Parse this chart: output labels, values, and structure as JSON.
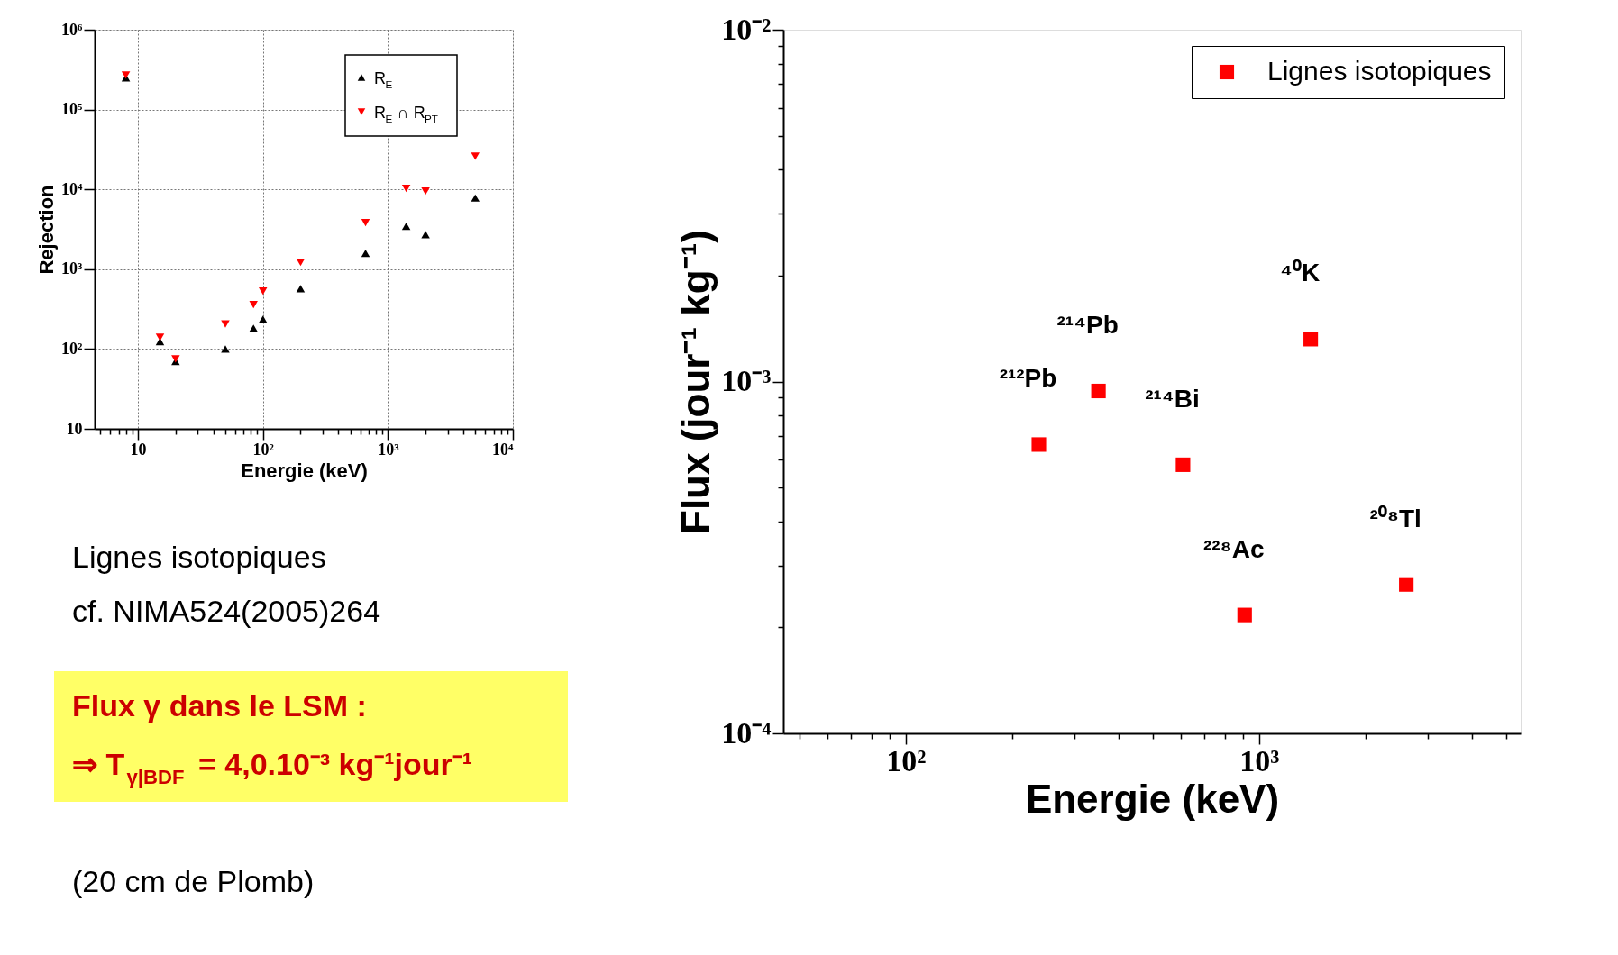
{
  "chart_data": [
    {
      "type": "scatter",
      "xlabel": "Energie (keV)",
      "ylabel": "Rejection",
      "log": "xy",
      "grid": true,
      "legend": "top right",
      "xlim": [
        4.5,
        10000
      ],
      "ylim": [
        10,
        1000000
      ],
      "xticks": [
        {
          "value": 5,
          "label": null
        },
        {
          "value": 6,
          "label": null
        },
        {
          "value": 7,
          "label": null
        },
        {
          "value": 8,
          "label": null
        },
        {
          "value": 9,
          "label": null
        },
        {
          "value": 10,
          "label": "10"
        },
        {
          "value": 20,
          "label": null
        },
        {
          "value": 30,
          "label": null
        },
        {
          "value": 40,
          "label": null
        },
        {
          "value": 50,
          "label": null
        },
        {
          "value": 60,
          "label": null
        },
        {
          "value": 70,
          "label": null
        },
        {
          "value": 80,
          "label": null
        },
        {
          "value": 90,
          "label": null
        },
        {
          "value": 100,
          "label": "10²"
        },
        {
          "value": 200,
          "label": null
        },
        {
          "value": 300,
          "label": null
        },
        {
          "value": 400,
          "label": null
        },
        {
          "value": 500,
          "label": null
        },
        {
          "value": 600,
          "label": null
        },
        {
          "value": 700,
          "label": null
        },
        {
          "value": 800,
          "label": null
        },
        {
          "value": 900,
          "label": null
        },
        {
          "value": 1000,
          "label": "10³"
        },
        {
          "value": 2000,
          "label": null
        },
        {
          "value": 3000,
          "label": null
        },
        {
          "value": 4000,
          "label": null
        },
        {
          "value": 5000,
          "label": null
        },
        {
          "value": 6000,
          "label": null
        },
        {
          "value": 7000,
          "label": null
        },
        {
          "value": 8000,
          "label": null
        },
        {
          "value": 9000,
          "label": null
        },
        {
          "value": 10000,
          "label": "10⁴"
        }
      ],
      "yticks": [
        10,
        {
          "value": 100,
          "label": "10²"
        },
        {
          "value": 1000,
          "label": "10³"
        },
        {
          "value": 10000,
          "label": "10⁴"
        },
        {
          "value": 100000,
          "label": "10⁵"
        },
        {
          "value": 1000000,
          "label": "10⁶"
        }
      ],
      "series": [
        {
          "name": "R$_{E}$",
          "color": "#000000",
          "marker": "triangle",
          "x": [
            8,
            15,
            20,
            50,
            84,
            100,
            200,
            662,
            1400,
            2000,
            5000
          ],
          "values": [
            250000,
            124,
            70,
            100,
            182,
            236,
            570,
            1580,
            3450,
            2720,
            7800
          ]
        },
        {
          "name": "R$_{E}$ ∩ R$_{PT}$",
          "color": "#ff0000",
          "marker": "triangle-down",
          "x": [
            8,
            15,
            20,
            50,
            84,
            100,
            200,
            662,
            1400,
            2000,
            5000
          ],
          "values": [
            270000,
            140,
            75,
            206,
            360,
            530,
            1220,
            3840,
            10300,
            9500,
            26000
          ]
        }
      ],
      "annotations": [
        "Lignes isotopiques",
        "cf. NIMA524(2005)264",
        "Flux γ dans le LSM :",
        "⇒ T$_{γ|BDF}$ = 4,0.10⁻³ kg⁻¹jour⁻¹",
        "(20 cm de Plomb)"
      ]
    },
    {
      "type": "scatter",
      "xlabel": "Energie (keV)",
      "ylabel": "Flux (jour⁻¹ kg⁻¹)",
      "log": "xy",
      "grid": false,
      "legend": "top right",
      "marker": "square",
      "xlim": [
        45,
        5500
      ],
      "ylim": [
        0.0001,
        0.01
      ],
      "xticks": [
        {
          "value": 50,
          "label": null
        },
        {
          "value": 60,
          "label": null
        },
        {
          "value": 70,
          "label": null
        },
        {
          "value": 80,
          "label": null
        },
        {
          "value": 90,
          "label": null
        },
        {
          "value": 100,
          "label": "10²"
        },
        {
          "value": 200,
          "label": null
        },
        {
          "value": 300,
          "label": null
        },
        {
          "value": 400,
          "label": null
        },
        {
          "value": 500,
          "label": null
        },
        {
          "value": 600,
          "label": null
        },
        {
          "value": 700,
          "label": null
        },
        {
          "value": 800,
          "label": null
        },
        {
          "value": 900,
          "label": null
        },
        {
          "value": 1000,
          "label": "10³"
        },
        {
          "value": 2000,
          "label": null
        },
        {
          "value": 3000,
          "label": null
        },
        {
          "value": 4000,
          "label": null
        },
        {
          "value": 5000,
          "label": null
        }
      ],
      "yticks": [
        {
          "value": 0.0001,
          "label": "10⁻⁴"
        },
        {
          "value": 0.0002,
          "label": null
        },
        {
          "value": 0.0003,
          "label": null
        },
        {
          "value": 0.0004,
          "label": null
        },
        {
          "value": 0.0005,
          "label": null
        },
        {
          "value": 0.0006,
          "label": null
        },
        {
          "value": 0.0007,
          "label": null
        },
        {
          "value": 0.0008,
          "label": null
        },
        {
          "value": 0.0009,
          "label": null
        },
        {
          "value": 0.001,
          "label": "10⁻³"
        },
        {
          "value": 0.002,
          "label": null
        },
        {
          "value": 0.003,
          "label": null
        },
        {
          "value": 0.004,
          "label": null
        },
        {
          "value": 0.005,
          "label": null
        },
        {
          "value": 0.006,
          "label": null
        },
        {
          "value": 0.007,
          "label": null
        },
        {
          "value": 0.008,
          "label": null
        },
        {
          "value": 0.009,
          "label": null
        },
        {
          "value": 0.01,
          "label": "10⁻²"
        }
      ],
      "series": [
        {
          "name": "Lignes isotopiques",
          "color": "#ff0000",
          "x": [
            238,
            351,
            609,
            910,
            1400,
            2610
          ],
          "values": [
            0.000662,
            0.00094,
            0.00058,
            0.000217,
            0.00132,
            0.000265
          ]
        }
      ],
      "annotations": [
        {
          "text": "²¹²Pb",
          "x": 238,
          "y": 0.000662
        },
        {
          "text": "²¹⁴Pb",
          "x": 351,
          "y": 0.00094
        },
        {
          "text": "²¹⁴Bi",
          "x": 609,
          "y": 0.00058
        },
        {
          "text": "²²⁸Ac",
          "x": 910,
          "y": 0.000217
        },
        {
          "text": "⁴⁰K",
          "x": 1400,
          "y": 0.00132
        },
        {
          "text": "²⁰⁸Tl",
          "x": 2610,
          "y": 0.000265
        }
      ]
    }
  ]
}
